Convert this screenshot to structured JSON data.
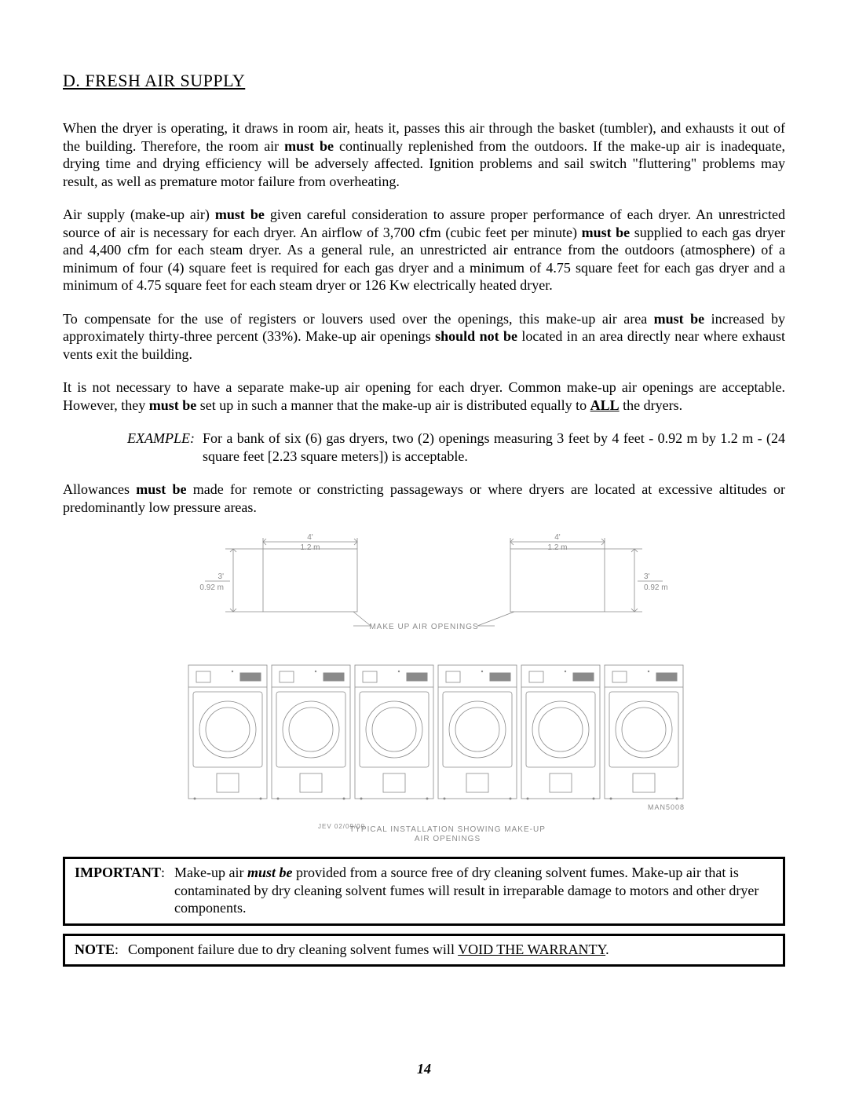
{
  "section": {
    "title": "D.  FRESH AIR SUPPLY"
  },
  "paragraphs": {
    "p1": {
      "pre": "When the dryer is operating, it draws in room air, heats it, passes this air through the basket (tumbler), and exhausts it out of the building.  Therefore, the room air ",
      "b1": "must be",
      "post": " continually replenished from the outdoors.  If the make-up air is inadequate, drying time and drying efficiency will be adversely affected.  Ignition problems and sail switch \"fluttering\" problems may result, as well as premature motor failure from overheating."
    },
    "p2": {
      "pre": "Air supply (make-up air) ",
      "b1": "must be",
      "mid": " given careful consideration to assure proper performance of each dryer.  An unrestricted source of air is necessary for each dryer.  An airflow of 3,700 cfm (cubic feet per minute) ",
      "b2": "must be",
      "post": " supplied to each gas dryer and 4,400 cfm for each steam dryer.  As a general rule, an unrestricted air entrance from the outdoors (atmosphere) of a minimum of four (4) square feet is required for each gas dryer and a minimum of 4.75 square feet for each gas dryer and a minimum of 4.75 square feet for each steam dryer or 126 Kw electrically heated dryer."
    },
    "p3": {
      "pre": "To compensate for the use of registers or louvers used over the openings, this make-up air area ",
      "b1": "must be",
      "mid": " increased by approximately thirty-three percent (33%).  Make-up air openings ",
      "b2": "should not be",
      "post": " located in an area directly near where exhaust vents exit the building."
    },
    "p4": {
      "pre": "It is not necessary to have a separate make-up air opening for each dryer.  Common make-up air openings are acceptable.  However, they ",
      "b1": "must be",
      "mid": " set up in such a manner that the make-up air is distributed equally to ",
      "all": "ALL",
      "post": " the dryers."
    },
    "example": {
      "label": "EXAMPLE:",
      "text": "For a bank of six (6) gas dryers, two (2) openings measuring 3 feet by 4 feet - 0.92 m by 1.2 m - (24 square feet [2.23 square meters]) is acceptable."
    },
    "p5": {
      "pre": "Allowances ",
      "b1": "must be",
      "post": " made for remote or constricting passageways or where dryers are located at excessive altitudes or predominantly low pressure areas."
    }
  },
  "figure": {
    "dim_w": "4'",
    "dim_w_m": "1.2 m",
    "dim_h": "3'",
    "dim_h_m": "0.92 m",
    "openings_label": "MAKE UP AIR OPENINGS",
    "rev": "JEV  02/09/00",
    "caption1": "TYPICAL INSTALLATION SHOWING MAKE-UP",
    "caption2": "AIR OPENINGS",
    "drawing_no": "MAN5008",
    "stroke": "#8a8a8a",
    "text_color": "#8a8a8a"
  },
  "important": {
    "label": "IMPORTANT",
    "pre": "Make-up air ",
    "mustbe": "must be",
    "post": " provided from a source free of dry cleaning solvent fumes.  Make-up air that is contaminated by dry cleaning solvent fumes will result in irreparable damage to motors and other dryer components."
  },
  "note": {
    "label": "NOTE",
    "pre": "Component failure due to dry cleaning solvent fumes will ",
    "void": "VOID THE WARRANTY",
    "post": "."
  },
  "page_number": "14"
}
